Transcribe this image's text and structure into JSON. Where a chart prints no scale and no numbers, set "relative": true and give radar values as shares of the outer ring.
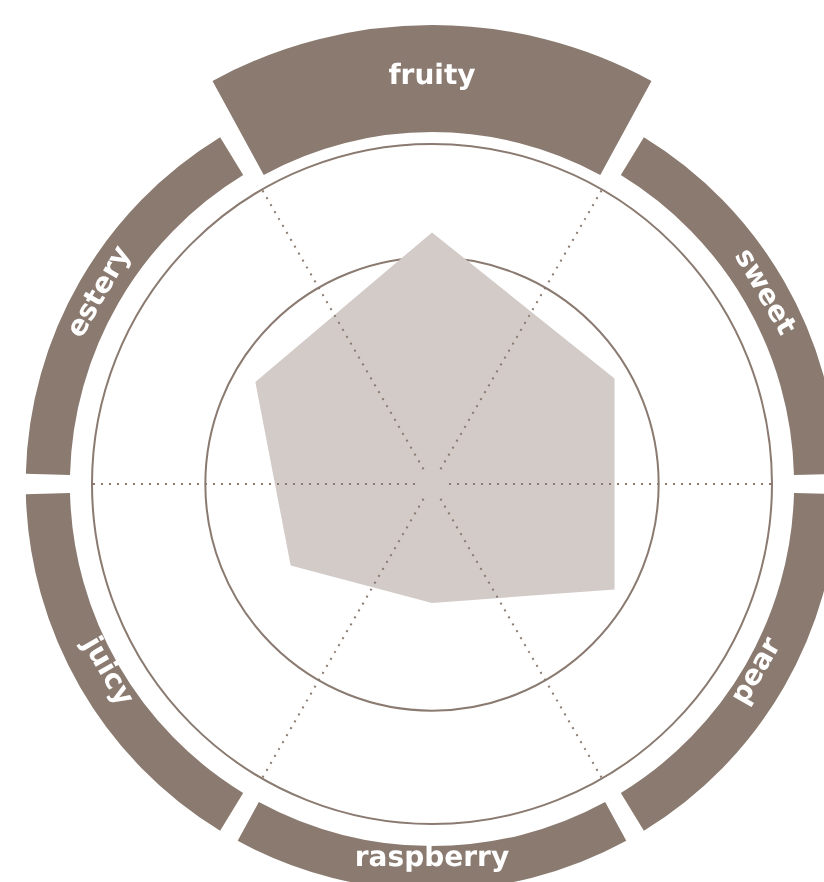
{
  "chart_data": {
    "type": "radar",
    "categories": [
      "fruity",
      "sweet",
      "pear",
      "raspberry",
      "juicy",
      "estery"
    ],
    "relative": true,
    "grid": true,
    "legend": false,
    "series": [
      {
        "color": "#d3cbc8",
        "values": [
          0.74,
          0.62,
          0.62,
          0.35,
          0.48,
          0.6
        ]
      }
    ]
  }
}
